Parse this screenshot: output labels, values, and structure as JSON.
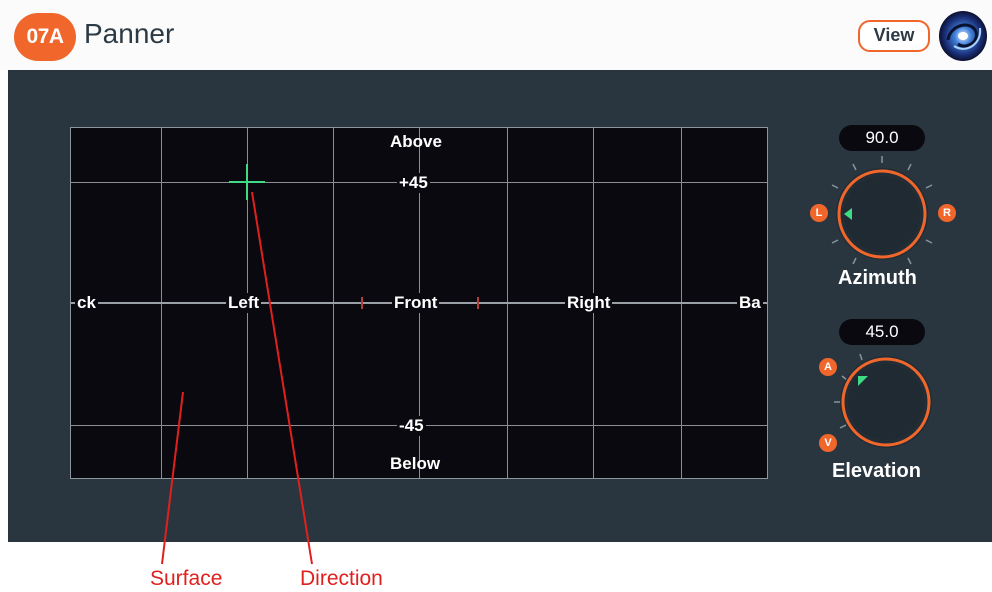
{
  "header": {
    "badge": "07A",
    "title": "Panner",
    "view_button": "View",
    "logo_icon": "swirl-logo-icon"
  },
  "surface": {
    "labels": {
      "above": "Above",
      "plus45": "+45",
      "minus45": "-45",
      "below": "Below",
      "back_left": "ck",
      "left": "Left",
      "front": "Front",
      "right": "Right",
      "back_right": "Ba"
    },
    "direction_color": "#3ddc84"
  },
  "azimuth": {
    "value": "90.0",
    "label": "Azimuth",
    "left_marker": "L",
    "right_marker": "R"
  },
  "elevation": {
    "value": "45.0",
    "label": "Elevation",
    "top_marker": "A",
    "bottom_marker": "V"
  },
  "annotations": {
    "surface": "Surface",
    "direction": "Direction"
  },
  "colors": {
    "accent": "#f0662b",
    "panel": "#29363f",
    "annotation": "#e0201d"
  }
}
